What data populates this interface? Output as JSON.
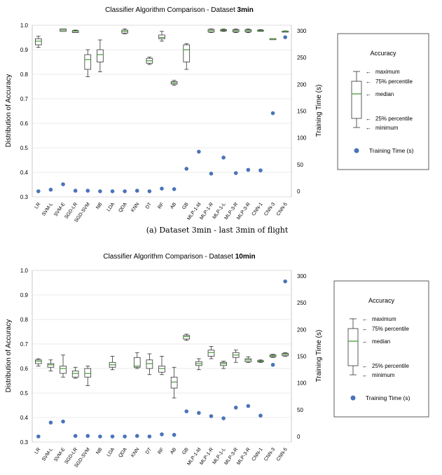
{
  "figure": {
    "caption": "(a) Dataset 3min - last 3min of flight"
  },
  "legend_box": {
    "title": "Accuracy",
    "labels": [
      "maximum",
      "75% percentile",
      "median",
      "25% percentile",
      "minimum"
    ],
    "scatter_label": "Training Time (s)"
  },
  "colors": {
    "box_median": "#4a9a3a",
    "scatter": "#4a74b9",
    "box_edge": "#333333"
  },
  "chart_data": [
    {
      "type": "box+scatter",
      "title": "Classifier Algorithm Comparison - Dataset",
      "title_bold": "3min",
      "xlabel": "",
      "ylabel": "Distribution of Accuracy",
      "y2label": "Training Time (s)",
      "ylim": [
        0.3,
        1.0
      ],
      "y2lim": [
        0,
        300
      ],
      "yticks": [
        "0.3",
        "0.4",
        "0.5",
        "0.6",
        "0.7",
        "0.8",
        "0.9",
        "1.0"
      ],
      "y2ticks": [
        "0",
        "50",
        "100",
        "150",
        "200",
        "250",
        "300"
      ],
      "categories": [
        "LR",
        "SVM-L",
        "SVM-E",
        "SGD-LR",
        "SGD-SVM",
        "NB",
        "LDA",
        "QDA",
        "KNN",
        "DT",
        "RF",
        "AB",
        "GB",
        "MLP-1-Id",
        "MLP-1-R",
        "MLP-1-L",
        "MLP-3-R",
        "MLP-3-R",
        "CNN-1",
        "CNN-3",
        "CNN-5"
      ],
      "boxes": [
        {
          "min": 0.91,
          "q1": 0.92,
          "median": 0.935,
          "q3": 0.945,
          "max": 0.955
        },
        null,
        {
          "min": 0.975,
          "q1": 0.975,
          "median": 0.98,
          "q3": 0.985,
          "max": 0.985
        },
        {
          "min": 0.97,
          "q1": 0.97,
          "median": 0.975,
          "q3": 0.978,
          "max": 0.98
        },
        {
          "min": 0.79,
          "q1": 0.82,
          "median": 0.86,
          "q3": 0.88,
          "max": 0.9
        },
        {
          "min": 0.81,
          "q1": 0.85,
          "median": 0.88,
          "q3": 0.9,
          "max": 0.94
        },
        null,
        {
          "min": 0.965,
          "q1": 0.968,
          "median": 0.975,
          "q3": 0.98,
          "max": 0.985
        },
        null,
        {
          "min": 0.84,
          "q1": 0.845,
          "median": 0.855,
          "q3": 0.865,
          "max": 0.87
        },
        {
          "min": 0.935,
          "q1": 0.945,
          "median": 0.95,
          "q3": 0.96,
          "max": 0.975
        },
        {
          "min": 0.755,
          "q1": 0.76,
          "median": 0.765,
          "q3": 0.77,
          "max": 0.775
        },
        {
          "min": 0.82,
          "q1": 0.85,
          "median": 0.9,
          "q3": 0.92,
          "max": 0.925
        },
        null,
        {
          "min": 0.97,
          "q1": 0.972,
          "median": 0.978,
          "q3": 0.983,
          "max": 0.985
        },
        {
          "min": 0.975,
          "q1": 0.977,
          "median": 0.98,
          "q3": 0.982,
          "max": 0.985
        },
        {
          "min": 0.97,
          "q1": 0.973,
          "median": 0.978,
          "q3": 0.982,
          "max": 0.985
        },
        {
          "min": 0.97,
          "q1": 0.973,
          "median": 0.978,
          "q3": 0.982,
          "max": 0.985
        },
        {
          "min": 0.975,
          "q1": 0.976,
          "median": 0.978,
          "q3": 0.98,
          "max": 0.982
        },
        {
          "min": 0.945,
          "q1": 0.945,
          "median": 0.945,
          "q3": 0.945,
          "max": 0.945
        },
        {
          "min": 0.973,
          "q1": 0.974,
          "median": 0.975,
          "q3": 0.976,
          "max": 0.977
        }
      ],
      "training_time": [
        0,
        3,
        13,
        1,
        1,
        0,
        0,
        0,
        1,
        0,
        5,
        4,
        42,
        74,
        33,
        63,
        34,
        40,
        39,
        146,
        288
      ]
    },
    {
      "type": "box+scatter",
      "title": "Classifier Algorithm Comparison - Dataset",
      "title_bold": "10min",
      "xlabel": "",
      "ylabel": "Distribution of Accuracy",
      "y2label": "Training Time (s)",
      "ylim": [
        0.3,
        1.0
      ],
      "y2lim": [
        0,
        300
      ],
      "yticks": [
        "0.3",
        "0.4",
        "0.5",
        "0.6",
        "0.7",
        "0.8",
        "0.9",
        "1.0"
      ],
      "y2ticks": [
        "0",
        "50",
        "100",
        "150",
        "200",
        "250",
        "300"
      ],
      "categories": [
        "LR",
        "SVM-L",
        "SVM-E",
        "SGD-LR",
        "SGD-SVM",
        "NB",
        "LDA",
        "QDA",
        "KNN",
        "DT",
        "RF",
        "AB",
        "GB",
        "MLP-1-Id",
        "MLP-1-R",
        "MLP-1-L",
        "MLP-3-R",
        "MLP-3-R",
        "CNN-1",
        "CNN-3",
        "CNN-5"
      ],
      "boxes": [
        {
          "min": 0.61,
          "q1": 0.62,
          "median": 0.63,
          "q3": 0.635,
          "max": 0.64
        },
        {
          "min": 0.59,
          "q1": 0.605,
          "median": 0.615,
          "q3": 0.62,
          "max": 0.635
        },
        {
          "min": 0.565,
          "q1": 0.58,
          "median": 0.6,
          "q3": 0.61,
          "max": 0.655
        },
        {
          "min": 0.56,
          "q1": 0.565,
          "median": 0.58,
          "q3": 0.59,
          "max": 0.605
        },
        {
          "min": 0.53,
          "q1": 0.565,
          "median": 0.58,
          "q3": 0.6,
          "max": 0.61
        },
        null,
        {
          "min": 0.595,
          "q1": 0.605,
          "median": 0.615,
          "q3": 0.625,
          "max": 0.65
        },
        null,
        {
          "min": 0.6,
          "q1": 0.605,
          "median": 0.61,
          "q3": 0.645,
          "max": 0.665
        },
        {
          "min": 0.575,
          "q1": 0.6,
          "median": 0.62,
          "q3": 0.635,
          "max": 0.66
        },
        {
          "min": 0.575,
          "q1": 0.585,
          "median": 0.6,
          "q3": 0.61,
          "max": 0.65
        },
        {
          "min": 0.48,
          "q1": 0.52,
          "median": 0.545,
          "q3": 0.565,
          "max": 0.605
        },
        {
          "min": 0.715,
          "q1": 0.72,
          "median": 0.73,
          "q3": 0.735,
          "max": 0.74
        },
        {
          "min": 0.595,
          "q1": 0.612,
          "median": 0.62,
          "q3": 0.628,
          "max": 0.64
        },
        {
          "min": 0.64,
          "q1": 0.65,
          "median": 0.665,
          "q3": 0.675,
          "max": 0.69
        },
        {
          "min": 0.6,
          "q1": 0.612,
          "median": 0.62,
          "q3": 0.625,
          "max": 0.63
        },
        {
          "min": 0.625,
          "q1": 0.645,
          "median": 0.655,
          "q3": 0.665,
          "max": 0.675
        },
        {
          "min": 0.625,
          "q1": 0.628,
          "median": 0.635,
          "q3": 0.64,
          "max": 0.648
        },
        {
          "min": 0.625,
          "q1": 0.628,
          "median": 0.63,
          "q3": 0.632,
          "max": 0.635
        },
        {
          "min": 0.645,
          "q1": 0.648,
          "median": 0.652,
          "q3": 0.655,
          "max": 0.658
        },
        {
          "min": 0.65,
          "q1": 0.652,
          "median": 0.658,
          "q3": 0.662,
          "max": 0.665
        }
      ],
      "training_time": [
        0,
        26,
        28,
        1,
        1,
        0,
        0,
        0,
        1,
        0,
        4,
        3,
        47,
        44,
        38,
        34,
        54,
        57,
        39,
        134,
        290
      ]
    }
  ]
}
